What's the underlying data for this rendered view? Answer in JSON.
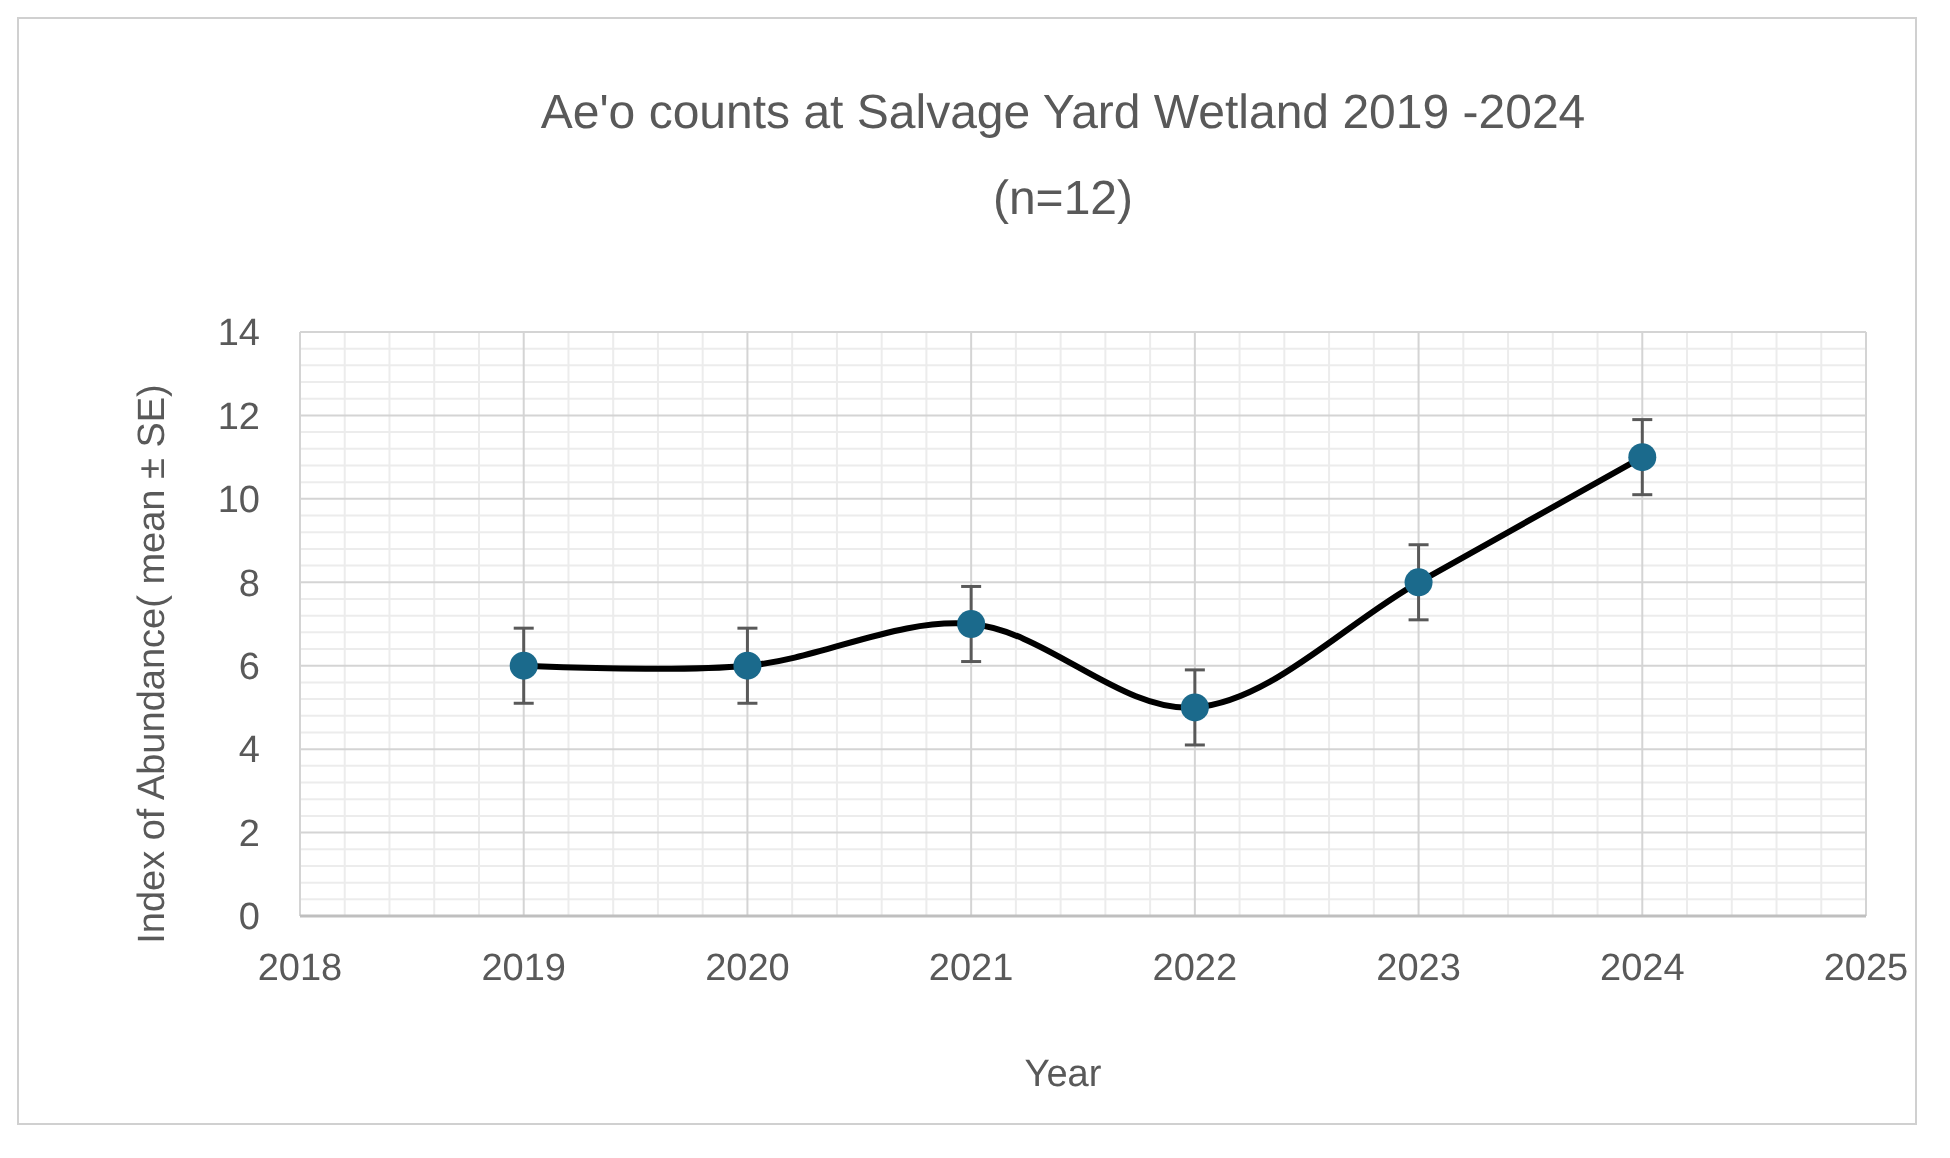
{
  "chart_data": {
    "type": "line",
    "title": "Ae'o counts at Salvage Yard Wetland 2019  -2024",
    "subtitle": "(n=12)",
    "xlabel": "Year",
    "ylabel": "Index of Abundance( mean  ± SE)",
    "x": [
      2019,
      2020,
      2021,
      2022,
      2023,
      2024
    ],
    "series": [
      {
        "color": "#1b6a8c",
        "values": [
          6,
          6,
          7,
          5,
          8,
          11
        ],
        "errors": [
          0.9,
          0.9,
          0.9,
          0.9,
          0.9,
          0.9
        ]
      }
    ],
    "xlim": [
      2018,
      2025
    ],
    "xticks": [
      2018,
      2019,
      2020,
      2021,
      2022,
      2023,
      2024,
      2025
    ],
    "ylim": [
      0,
      14
    ],
    "yticks": [
      0,
      2,
      4,
      6,
      8,
      10,
      12,
      14
    ],
    "grid": true,
    "marker": "circle",
    "line_style": "solid"
  }
}
